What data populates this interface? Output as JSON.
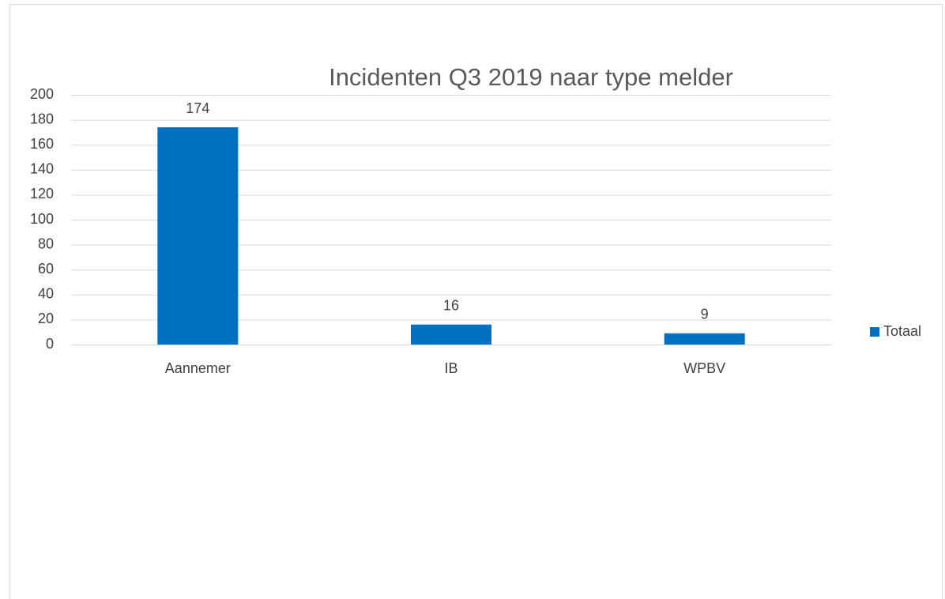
{
  "chart_data": {
    "type": "bar",
    "title": "Incidenten Q3 2019 naar type melder",
    "categories": [
      "Aannemer",
      "IB",
      "WPBV"
    ],
    "series": [
      {
        "name": "Totaal",
        "color": "#0070c0",
        "values": [
          174,
          16,
          9
        ]
      }
    ],
    "ylim": [
      0,
      200
    ],
    "yticks": [
      0,
      20,
      40,
      60,
      80,
      100,
      120,
      140,
      160,
      180,
      200
    ],
    "grid": true,
    "legend": "right",
    "data_labels": true
  }
}
